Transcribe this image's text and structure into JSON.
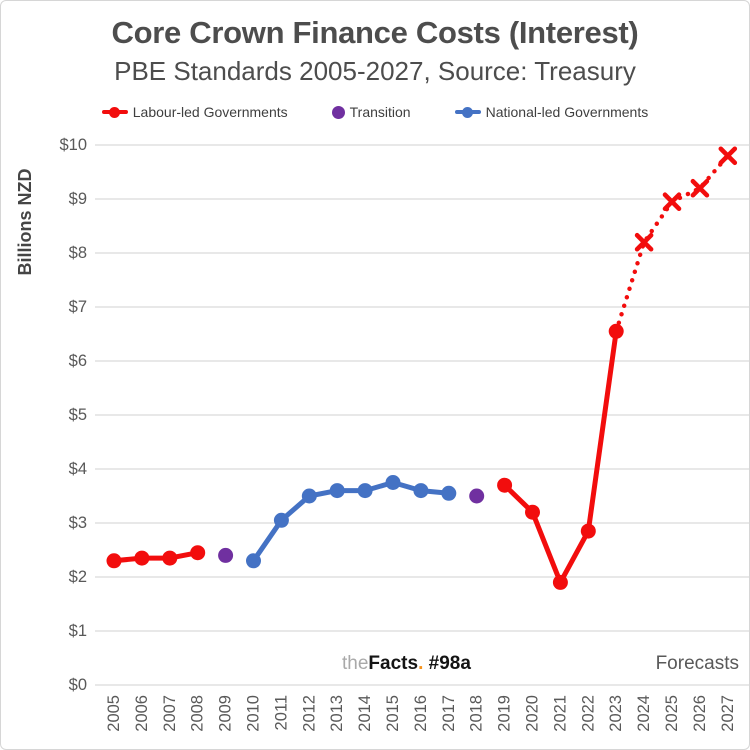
{
  "page": {
    "watermark": {
      "the": "the",
      "facts": "Facts",
      "dot": ".",
      "tag": " #98a",
      "dot_color": "#f7941d"
    }
  },
  "legend": {
    "items": [
      {
        "label": "Labour-led Governments",
        "color": "#f20d0d",
        "marker": "line-dot"
      },
      {
        "label": "Transition",
        "color": "#7030a0",
        "marker": "dot"
      },
      {
        "label": "National-led Governments",
        "color": "#4472c4",
        "marker": "line-dot"
      }
    ]
  },
  "chart_data": {
    "type": "line",
    "title": "Core Crown Finance Costs (Interest)",
    "subtitle": "PBE Standards 2005-2027, Source: Treasury",
    "ylabel": "Billions NZD",
    "xlabel": "",
    "ylim": [
      0,
      10
    ],
    "y_tick_step": 1,
    "y_tick_prefix": "$",
    "grid": "horizontal-only",
    "gridline_color": "#d9d9d9",
    "axis_label_color": "#595959",
    "legend_position": "top",
    "x_categories": [
      "2005",
      "2006",
      "2007",
      "2008",
      "2009",
      "2010",
      "2011",
      "2012",
      "2013",
      "2014",
      "2015",
      "2016",
      "2017",
      "2018",
      "2019",
      "2020",
      "2021",
      "2022",
      "2023",
      "2024",
      "2025",
      "2026",
      "2027"
    ],
    "annotations": [
      {
        "text": "Forecasts",
        "position": "bottom-right"
      }
    ],
    "series": [
      {
        "name": "Labour-led Governments (2005-2008)",
        "color": "#f20d0d",
        "line": "solid",
        "marker": "circle",
        "data": [
          [
            "2005",
            2.3
          ],
          [
            "2006",
            2.35
          ],
          [
            "2007",
            2.35
          ],
          [
            "2008",
            2.45
          ]
        ]
      },
      {
        "name": "Transition (2009)",
        "color": "#7030a0",
        "line": "none",
        "marker": "circle",
        "data": [
          [
            "2009",
            2.4
          ]
        ]
      },
      {
        "name": "National-led Governments (2010-2017)",
        "color": "#4472c4",
        "line": "solid",
        "marker": "circle",
        "data": [
          [
            "2010",
            2.3
          ],
          [
            "2011",
            3.05
          ],
          [
            "2012",
            3.5
          ],
          [
            "2013",
            3.6
          ],
          [
            "2014",
            3.6
          ],
          [
            "2015",
            3.75
          ],
          [
            "2016",
            3.6
          ],
          [
            "2017",
            3.55
          ]
        ]
      },
      {
        "name": "Transition (2018)",
        "color": "#7030a0",
        "line": "none",
        "marker": "circle",
        "data": [
          [
            "2018",
            3.5
          ]
        ]
      },
      {
        "name": "Labour-led Governments (2019-2023)",
        "color": "#f20d0d",
        "line": "solid",
        "marker": "circle",
        "data": [
          [
            "2019",
            3.7
          ],
          [
            "2020",
            3.2
          ],
          [
            "2021",
            1.9
          ],
          [
            "2022",
            2.85
          ],
          [
            "2023",
            6.55
          ]
        ]
      },
      {
        "name": "Labour-led Governments forecast (2024-2027)",
        "color": "#f20d0d",
        "line": "dotted",
        "marker": "x",
        "skip_first_marker": true,
        "data": [
          [
            "2023",
            6.55
          ],
          [
            "2024",
            8.2
          ],
          [
            "2025",
            8.95
          ],
          [
            "2026",
            9.2
          ],
          [
            "2027",
            9.8
          ]
        ]
      }
    ]
  }
}
